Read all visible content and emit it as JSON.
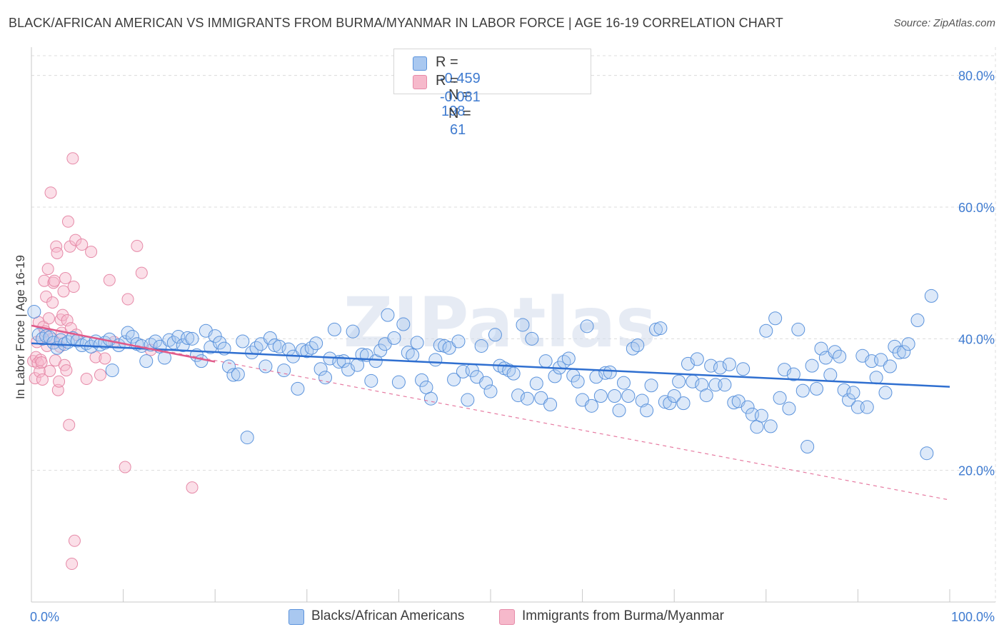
{
  "header": {
    "title": "BLACK/AFRICAN AMERICAN VS IMMIGRANTS FROM BURMA/MYANMAR IN LABOR FORCE | AGE 16-19 CORRELATION CHART",
    "source": "Source: ZipAtlas.com"
  },
  "watermark": "ZIPatlas",
  "legend_top": {
    "rows": [
      {
        "r_label": "R =",
        "r_value": "-0.459",
        "n_label": "N =",
        "n_value": "198"
      },
      {
        "r_label": "R =",
        "r_value": "-0.081",
        "n_label": "N =",
        "n_value": "61"
      }
    ]
  },
  "legend_bottom": {
    "items": [
      "Blacks/African Americans",
      "Immigrants from Burma/Myanmar"
    ]
  },
  "colors": {
    "blue_fill": "#a9c8f0",
    "blue_stroke": "#5b93dc",
    "blue_line": "#2f6fd0",
    "pink_fill": "#f6b9cb",
    "pink_stroke": "#e68aa8",
    "pink_line": "#e05a8a",
    "grid": "#dcdcdc",
    "tick_text": "#3f7bd0"
  },
  "chart_data": {
    "type": "scatter",
    "title": "BLACK/AFRICAN AMERICAN VS IMMIGRANTS FROM BURMA/MYANMAR IN LABOR FORCE | AGE 16-19 CORRELATION CHART",
    "xlabel": "",
    "ylabel": "In Labor Force | Age 16-19",
    "xlim": [
      0,
      100
    ],
    "ylim": [
      0,
      83
    ],
    "x_tick_labels": [
      "0.0%",
      "100.0%"
    ],
    "y_ticks": [
      20,
      40,
      60,
      80
    ],
    "y_tick_labels": [
      "20.0%",
      "40.0%",
      "60.0%",
      "80.0%"
    ],
    "grid": true,
    "series": [
      {
        "name": "Blacks/African Americans",
        "R": -0.459,
        "N": 198,
        "trend": {
          "x": [
            0,
            100
          ],
          "y": [
            39.3,
            32.7
          ]
        },
        "points": [
          [
            0.3,
            44.1
          ],
          [
            0.8,
            40.6
          ],
          [
            1.2,
            40.0
          ],
          [
            1.6,
            40.4
          ],
          [
            2.0,
            40.2
          ],
          [
            2.4,
            39.4
          ],
          [
            2.8,
            38.6
          ],
          [
            3.2,
            39.8
          ],
          [
            3.6,
            39.2
          ],
          [
            4.0,
            39.5
          ],
          [
            4.5,
            40.1
          ],
          [
            5.0,
            39.7
          ],
          [
            5.5,
            39.0
          ],
          [
            6.0,
            39.3
          ],
          [
            6.5,
            38.8
          ],
          [
            7.0,
            39.6
          ],
          [
            7.5,
            39.1
          ],
          [
            8.0,
            39.4
          ],
          [
            8.5,
            39.9
          ],
          [
            8.8,
            35.2
          ],
          [
            9.5,
            39.0
          ],
          [
            10.2,
            39.5
          ],
          [
            10.5,
            40.9
          ],
          [
            11.0,
            40.3
          ],
          [
            11.5,
            39.2
          ],
          [
            12.0,
            38.9
          ],
          [
            12.5,
            36.6
          ],
          [
            13.0,
            39.1
          ],
          [
            13.5,
            39.6
          ],
          [
            14.0,
            38.8
          ],
          [
            14.5,
            37.1
          ],
          [
            15.0,
            39.8
          ],
          [
            15.5,
            39.4
          ],
          [
            16.0,
            40.3
          ],
          [
            16.5,
            39.0
          ],
          [
            17.0,
            40.1
          ],
          [
            17.5,
            40.0
          ],
          [
            18.0,
            37.5
          ],
          [
            18.5,
            36.6
          ],
          [
            19.0,
            41.2
          ],
          [
            19.5,
            38.7
          ],
          [
            20.0,
            40.4
          ],
          [
            20.5,
            39.4
          ],
          [
            21.0,
            38.5
          ],
          [
            21.5,
            35.8
          ],
          [
            22.0,
            34.5
          ],
          [
            22.5,
            34.6
          ],
          [
            23.0,
            39.6
          ],
          [
            23.5,
            25.0
          ],
          [
            24.0,
            37.9
          ],
          [
            24.5,
            38.6
          ],
          [
            25.0,
            39.2
          ],
          [
            25.5,
            35.8
          ],
          [
            26.0,
            40.1
          ],
          [
            26.5,
            39.0
          ],
          [
            27.0,
            38.8
          ],
          [
            27.5,
            35.2
          ],
          [
            28.0,
            38.4
          ],
          [
            28.5,
            37.3
          ],
          [
            29.0,
            32.4
          ],
          [
            29.5,
            38.3
          ],
          [
            30.0,
            38.1
          ],
          [
            30.5,
            38.6
          ],
          [
            31.0,
            39.3
          ],
          [
            31.5,
            35.4
          ],
          [
            32.0,
            34.1
          ],
          [
            32.5,
            37.0
          ],
          [
            33.0,
            41.4
          ],
          [
            33.5,
            36.5
          ],
          [
            34.0,
            36.6
          ],
          [
            34.5,
            35.3
          ],
          [
            35.0,
            41.1
          ],
          [
            35.5,
            36.0
          ],
          [
            36.0,
            37.6
          ],
          [
            36.5,
            37.5
          ],
          [
            37.0,
            33.6
          ],
          [
            37.5,
            36.6
          ],
          [
            38.0,
            38.2
          ],
          [
            38.5,
            39.2
          ],
          [
            38.8,
            43.6
          ],
          [
            39.5,
            40.1
          ],
          [
            40.0,
            33.4
          ],
          [
            40.5,
            42.2
          ],
          [
            41.0,
            37.9
          ],
          [
            41.5,
            37.5
          ],
          [
            42.0,
            39.4
          ],
          [
            42.5,
            33.7
          ],
          [
            43.0,
            32.6
          ],
          [
            43.5,
            30.9
          ],
          [
            44.0,
            36.8
          ],
          [
            44.5,
            39.0
          ],
          [
            45.0,
            38.9
          ],
          [
            45.5,
            38.6
          ],
          [
            46.0,
            33.8
          ],
          [
            46.5,
            39.6
          ],
          [
            47.0,
            35.0
          ],
          [
            47.5,
            30.7
          ],
          [
            48.0,
            35.2
          ],
          [
            48.5,
            34.2
          ],
          [
            49.0,
            38.9
          ],
          [
            49.5,
            33.3
          ],
          [
            50.0,
            32.0
          ],
          [
            50.5,
            40.6
          ],
          [
            51.0,
            35.9
          ],
          [
            51.5,
            35.5
          ],
          [
            52.0,
            35.2
          ],
          [
            52.5,
            34.7
          ],
          [
            53.0,
            31.4
          ],
          [
            53.5,
            42.1
          ],
          [
            54.0,
            30.9
          ],
          [
            54.5,
            40.0
          ],
          [
            55.0,
            33.2
          ],
          [
            55.5,
            31.0
          ],
          [
            56.0,
            36.6
          ],
          [
            56.5,
            30.0
          ],
          [
            57.0,
            34.3
          ],
          [
            57.5,
            35.6
          ],
          [
            58.0,
            36.5
          ],
          [
            58.5,
            37.0
          ],
          [
            59.0,
            34.4
          ],
          [
            59.5,
            33.5
          ],
          [
            60.0,
            30.7
          ],
          [
            60.5,
            41.9
          ],
          [
            61.0,
            29.8
          ],
          [
            61.5,
            34.2
          ],
          [
            62.0,
            31.3
          ],
          [
            62.5,
            34.8
          ],
          [
            63.0,
            34.9
          ],
          [
            63.5,
            31.3
          ],
          [
            64.0,
            29.1
          ],
          [
            64.5,
            33.3
          ],
          [
            65.0,
            31.3
          ],
          [
            65.5,
            38.5
          ],
          [
            66.0,
            39.0
          ],
          [
            66.5,
            30.6
          ],
          [
            67.0,
            29.1
          ],
          [
            67.5,
            32.9
          ],
          [
            68.0,
            41.4
          ],
          [
            68.5,
            41.6
          ],
          [
            69.0,
            30.4
          ],
          [
            69.5,
            30.2
          ],
          [
            70.0,
            31.3
          ],
          [
            70.5,
            33.5
          ],
          [
            71.0,
            30.2
          ],
          [
            71.5,
            36.2
          ],
          [
            72.0,
            33.5
          ],
          [
            72.5,
            36.9
          ],
          [
            73.0,
            33.0
          ],
          [
            73.5,
            31.4
          ],
          [
            74.0,
            35.9
          ],
          [
            74.5,
            33.0
          ],
          [
            75.0,
            35.6
          ],
          [
            75.5,
            33.0
          ],
          [
            76.0,
            36.1
          ],
          [
            76.5,
            30.3
          ],
          [
            77.0,
            30.5
          ],
          [
            77.5,
            35.4
          ],
          [
            78.0,
            29.6
          ],
          [
            78.5,
            28.5
          ],
          [
            79.0,
            26.6
          ],
          [
            79.5,
            28.3
          ],
          [
            80.0,
            41.2
          ],
          [
            80.5,
            26.7
          ],
          [
            81.0,
            43.1
          ],
          [
            81.5,
            31.0
          ],
          [
            82.0,
            35.3
          ],
          [
            82.5,
            29.4
          ],
          [
            83.0,
            34.6
          ],
          [
            83.5,
            41.4
          ],
          [
            84.0,
            32.1
          ],
          [
            84.5,
            23.6
          ],
          [
            85.0,
            35.9
          ],
          [
            85.5,
            32.4
          ],
          [
            86.0,
            38.5
          ],
          [
            86.5,
            37.1
          ],
          [
            87.0,
            34.5
          ],
          [
            87.5,
            38.0
          ],
          [
            88.0,
            37.3
          ],
          [
            88.5,
            32.2
          ],
          [
            89.0,
            30.7
          ],
          [
            89.5,
            31.8
          ],
          [
            90.0,
            29.6
          ],
          [
            90.5,
            37.4
          ],
          [
            91.0,
            29.6
          ],
          [
            91.5,
            36.6
          ],
          [
            92.0,
            34.1
          ],
          [
            92.5,
            36.8
          ],
          [
            93.0,
            31.8
          ],
          [
            93.5,
            35.8
          ],
          [
            94.0,
            38.8
          ],
          [
            94.5,
            37.9
          ],
          [
            95.0,
            38.0
          ],
          [
            95.5,
            39.2
          ],
          [
            96.5,
            42.8
          ],
          [
            97.5,
            22.6
          ],
          [
            98.0,
            46.5
          ]
        ]
      },
      {
        "name": "Immigrants from Burma/Myanmar",
        "R": -0.081,
        "N": 61,
        "trend_solid": {
          "x": [
            0,
            20
          ],
          "y": [
            42.0,
            36.5
          ]
        },
        "trend_dashed": {
          "x": [
            0,
            100
          ],
          "y": [
            42.0,
            15.5
          ]
        },
        "points": [
          [
            0.2,
            36.6
          ],
          [
            0.4,
            34.0
          ],
          [
            0.5,
            37.2
          ],
          [
            0.6,
            39.5
          ],
          [
            0.7,
            36.3
          ],
          [
            0.8,
            42.5
          ],
          [
            0.9,
            35.0
          ],
          [
            1.0,
            36.8
          ],
          [
            1.1,
            36.4
          ],
          [
            1.2,
            33.8
          ],
          [
            1.3,
            41.8
          ],
          [
            1.4,
            48.8
          ],
          [
            1.5,
            41.1
          ],
          [
            1.6,
            46.4
          ],
          [
            1.7,
            38.9
          ],
          [
            1.8,
            50.6
          ],
          [
            1.9,
            43.1
          ],
          [
            2.0,
            35.1
          ],
          [
            2.1,
            62.2
          ],
          [
            2.2,
            40.0
          ],
          [
            2.3,
            45.5
          ],
          [
            2.4,
            48.5
          ],
          [
            2.5,
            48.8
          ],
          [
            2.6,
            36.7
          ],
          [
            2.7,
            54.0
          ],
          [
            2.8,
            53.0
          ],
          [
            2.9,
            32.2
          ],
          [
            3.0,
            33.5
          ],
          [
            3.1,
            38.8
          ],
          [
            3.2,
            42.9
          ],
          [
            3.3,
            40.9
          ],
          [
            3.4,
            43.6
          ],
          [
            3.5,
            47.2
          ],
          [
            3.6,
            36.0
          ],
          [
            3.7,
            49.2
          ],
          [
            3.8,
            35.2
          ],
          [
            3.9,
            42.8
          ],
          [
            4.0,
            57.8
          ],
          [
            4.1,
            26.9
          ],
          [
            4.2,
            54.0
          ],
          [
            4.3,
            41.6
          ],
          [
            4.4,
            5.8
          ],
          [
            4.5,
            67.4
          ],
          [
            4.6,
            47.9
          ],
          [
            4.7,
            9.3
          ],
          [
            4.8,
            55.0
          ],
          [
            5.5,
            54.3
          ],
          [
            6.0,
            33.9
          ],
          [
            6.5,
            53.2
          ],
          [
            7.0,
            37.2
          ],
          [
            7.5,
            34.5
          ],
          [
            8.0,
            37.0
          ],
          [
            8.5,
            48.9
          ],
          [
            9.0,
            39.5
          ],
          [
            10.2,
            20.5
          ],
          [
            10.5,
            46.0
          ],
          [
            11.5,
            54.1
          ],
          [
            12.0,
            50.0
          ],
          [
            13.0,
            38.3
          ],
          [
            17.5,
            17.4
          ],
          [
            4.9,
            40.6
          ]
        ]
      }
    ]
  }
}
